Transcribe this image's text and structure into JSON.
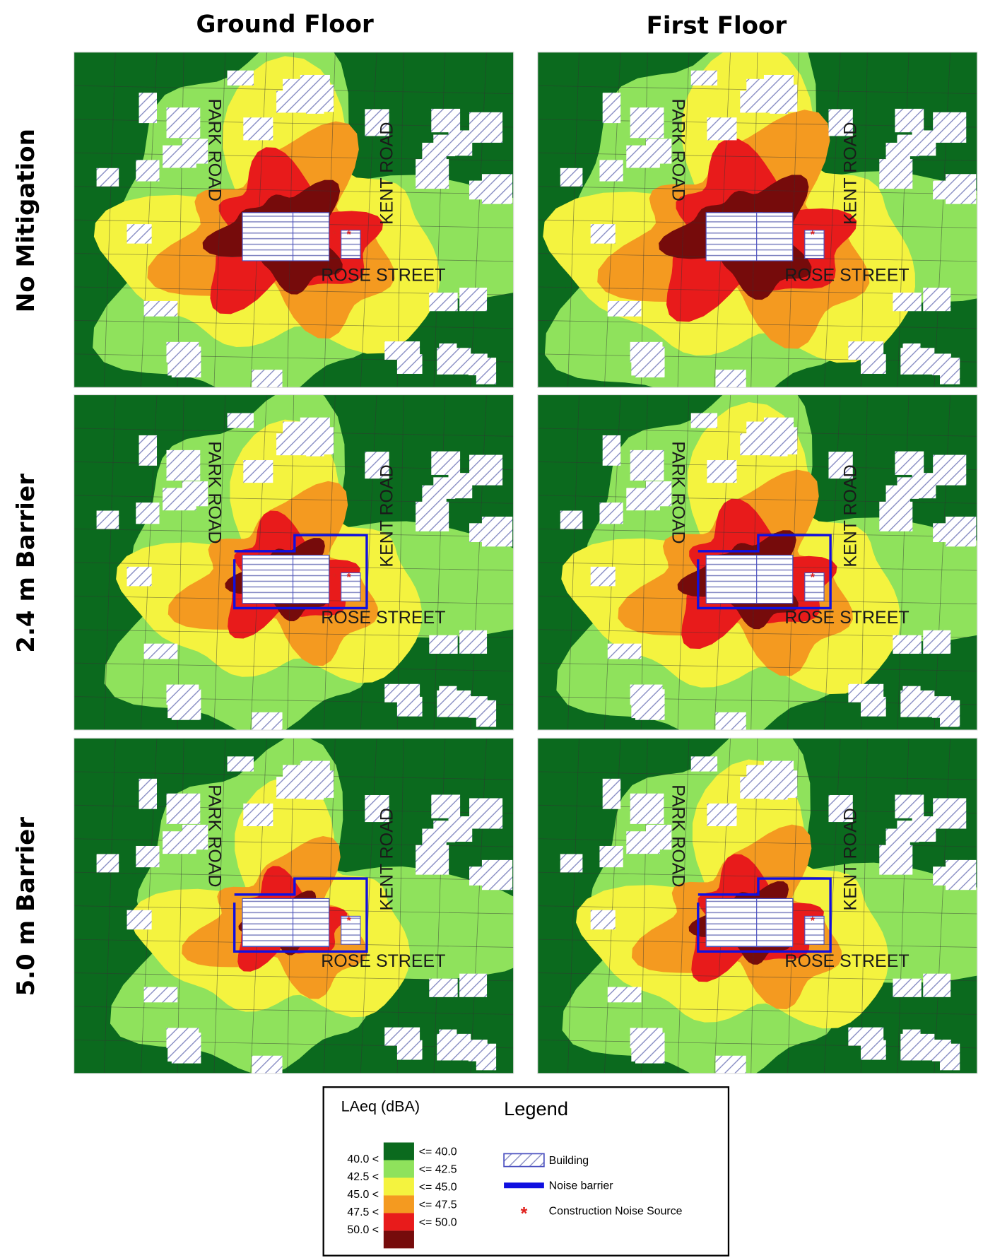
{
  "columns": [
    "Ground Floor",
    "First Floor"
  ],
  "rows": [
    "No Mitigation",
    "2.4 m Barrier",
    "5.0 m Barrier"
  ],
  "streets": {
    "park": "PARK ROAD",
    "kent": "KENT ROAD",
    "rose": "ROSE  STREET"
  },
  "legend": {
    "scale_title": "LAeq (dBA)",
    "title": "Legend",
    "classes": [
      {
        "upper": "<= 40.0",
        "color": "#0b6a1e"
      },
      {
        "lower": "40.0 <",
        "upper": "<= 42.5",
        "color": "#8fe25c"
      },
      {
        "lower": "42.5 <",
        "upper": "<= 45.0",
        "color": "#f4f33f"
      },
      {
        "lower": "45.0 <",
        "upper": "<= 47.5",
        "color": "#f49a20"
      },
      {
        "lower": "47.5 <",
        "upper": "<= 50.0",
        "color": "#e81b1b"
      },
      {
        "lower": "50.0 <",
        "color": "#760b0b"
      }
    ],
    "items": [
      "Building",
      "Noise barrier",
      "Construction Noise Source"
    ]
  }
}
